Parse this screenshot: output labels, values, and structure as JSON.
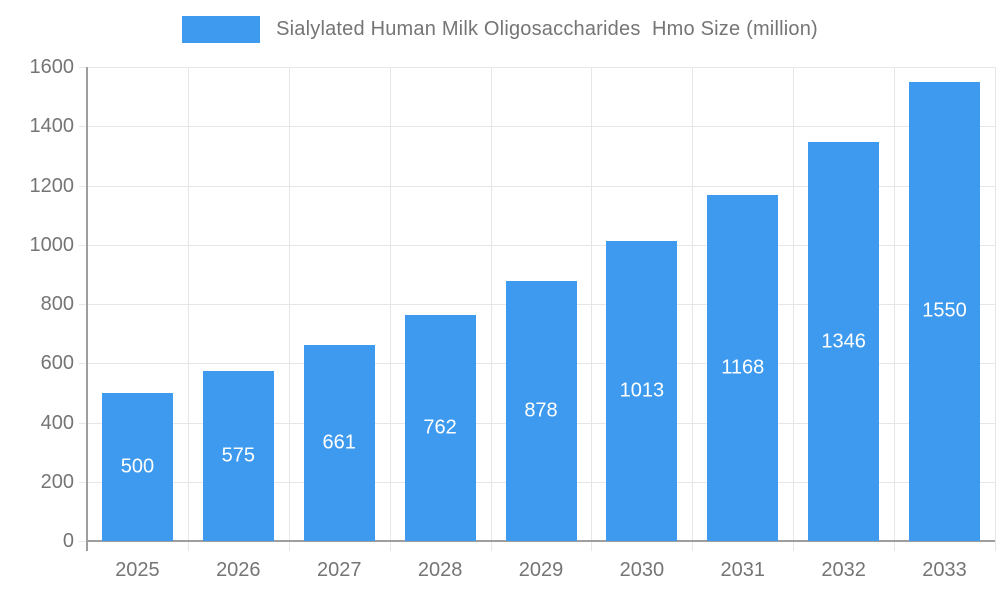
{
  "chart_data": {
    "type": "bar",
    "title": "Sialylated Human Milk Oligosaccharides  Hmo Size (million)",
    "legend": [
      "Sialylated Human Milk Oligosaccharides  Hmo Size (million)"
    ],
    "legend_position": "top",
    "categories": [
      "2025",
      "2026",
      "2027",
      "2028",
      "2029",
      "2030",
      "2031",
      "2032",
      "2033"
    ],
    "values": [
      500,
      575,
      661,
      762,
      878,
      1013,
      1168,
      1346,
      1550
    ],
    "xlabel": "",
    "ylabel": "",
    "ylim": [
      0,
      1600
    ],
    "ytick_step": 200,
    "yticks": [
      0,
      200,
      400,
      600,
      800,
      1000,
      1200,
      1400,
      1600
    ],
    "grid": true,
    "colors": {
      "bar": "#3d9aef",
      "bar_label": "#ffffff",
      "axis": "#9e9e9e",
      "grid": "#e6e6e6",
      "tick_text": "#757575"
    }
  }
}
